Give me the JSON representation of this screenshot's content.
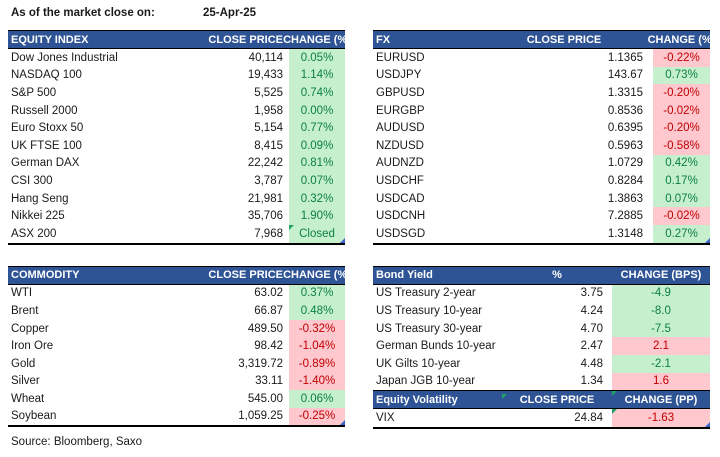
{
  "meta": {
    "as_of_label": "As of the market close on:",
    "date": "25-Apr-25",
    "source": "Source: Bloomberg, Saxo"
  },
  "colors": {
    "header_bg": "#2F5496",
    "header_text": "#FFFFFF",
    "positive_bg": "#C6EFCE",
    "positive_text": "#0B8043",
    "negative_bg": "#FFC7CE",
    "negative_text": "#C00000",
    "note_marker": "#21A366",
    "corner_marker": "#3A63C9"
  },
  "tables": {
    "equity_index": {
      "title": "EQUITY INDEX",
      "price_label": "CLOSE PRICE",
      "change_label": "CHANGE (%)",
      "rows": [
        {
          "name": "Dow Jones Industrial",
          "price": "40,114",
          "change": "0.05%",
          "sentiment": "pos"
        },
        {
          "name": "NASDAQ 100",
          "price": "19,433",
          "change": "1.14%",
          "sentiment": "pos"
        },
        {
          "name": "S&P 500",
          "price": "5,525",
          "change": "0.74%",
          "sentiment": "pos"
        },
        {
          "name": "Russell 2000",
          "price": "1,958",
          "change": "0.00%",
          "sentiment": "pos"
        },
        {
          "name": "Euro Stoxx 50",
          "price": "5,154",
          "change": "0.77%",
          "sentiment": "pos"
        },
        {
          "name": "UK FTSE 100",
          "price": "8,415",
          "change": "0.09%",
          "sentiment": "pos"
        },
        {
          "name": "German DAX",
          "price": "22,242",
          "change": "0.81%",
          "sentiment": "pos"
        },
        {
          "name": "CSI 300",
          "price": "3,787",
          "change": "0.07%",
          "sentiment": "pos"
        },
        {
          "name": "Hang Seng",
          "price": "21,981",
          "change": "0.32%",
          "sentiment": "pos"
        },
        {
          "name": "Nikkei 225",
          "price": "35,706",
          "change": "1.90%",
          "sentiment": "pos"
        },
        {
          "name": "ASX 200",
          "price": "7,968",
          "change": "Closed",
          "sentiment": "pos",
          "note": true
        }
      ]
    },
    "fx": {
      "title": "FX",
      "price_label": "CLOSE PRICE",
      "change_label": "CHANGE (%)",
      "rows": [
        {
          "name": "EURUSD",
          "price": "1.1365",
          "change": "-0.22%",
          "sentiment": "neg"
        },
        {
          "name": "USDJPY",
          "price": "143.67",
          "change": "0.73%",
          "sentiment": "pos"
        },
        {
          "name": "GBPUSD",
          "price": "1.3315",
          "change": "-0.20%",
          "sentiment": "neg"
        },
        {
          "name": "EURGBP",
          "price": "0.8536",
          "change": "-0.02%",
          "sentiment": "neg"
        },
        {
          "name": "AUDUSD",
          "price": "0.6395",
          "change": "-0.20%",
          "sentiment": "neg"
        },
        {
          "name": "NZDUSD",
          "price": "0.5963",
          "change": "-0.58%",
          "sentiment": "neg"
        },
        {
          "name": "AUDNZD",
          "price": "1.0729",
          "change": "0.42%",
          "sentiment": "pos"
        },
        {
          "name": "USDCHF",
          "price": "0.8284",
          "change": "0.17%",
          "sentiment": "pos"
        },
        {
          "name": "USDCAD",
          "price": "1.3863",
          "change": "0.07%",
          "sentiment": "pos"
        },
        {
          "name": "USDCNH",
          "price": "7.2885",
          "change": "-0.02%",
          "sentiment": "neg"
        },
        {
          "name": "USDSGD",
          "price": "1.3148",
          "change": "0.27%",
          "sentiment": "pos"
        }
      ]
    },
    "commodity": {
      "title": "COMMODITY",
      "price_label": "CLOSE PRICE",
      "change_label": "CHANGE (%)",
      "rows": [
        {
          "name": "WTI",
          "price": "63.02",
          "change": "0.37%",
          "sentiment": "pos"
        },
        {
          "name": "Brent",
          "price": "66.87",
          "change": "0.48%",
          "sentiment": "pos"
        },
        {
          "name": "Copper",
          "price": "489.50",
          "change": "-0.32%",
          "sentiment": "neg"
        },
        {
          "name": "Iron Ore",
          "price": "98.42",
          "change": "-1.04%",
          "sentiment": "neg"
        },
        {
          "name": "Gold",
          "price": "3,319.72",
          "change": "-0.89%",
          "sentiment": "neg"
        },
        {
          "name": "Silver",
          "price": "33.11",
          "change": "-1.40%",
          "sentiment": "neg"
        },
        {
          "name": "Wheat",
          "price": "545.00",
          "change": "0.06%",
          "sentiment": "pos"
        },
        {
          "name": "Soybean",
          "price": "1,059.25",
          "change": "-0.25%",
          "sentiment": "neg"
        }
      ]
    },
    "bond_yield": {
      "title": "Bond Yield",
      "price_label": "%",
      "change_label": "CHANGE (BPS)",
      "rows": [
        {
          "name": "US Treasury 2-year",
          "price": "3.75",
          "change": "-4.9",
          "sentiment": "pos"
        },
        {
          "name": "US Treasury 10-year",
          "price": "4.24",
          "change": "-8.0",
          "sentiment": "pos"
        },
        {
          "name": "US Treasury 30-year",
          "price": "4.70",
          "change": "-7.5",
          "sentiment": "pos"
        },
        {
          "name": "German Bunds 10-year",
          "price": "2.47",
          "change": "2.1",
          "sentiment": "neg"
        },
        {
          "name": "UK Gilts 10-year",
          "price": "4.48",
          "change": "-2.1",
          "sentiment": "pos"
        },
        {
          "name": "Japan JGB 10-year",
          "price": "1.34",
          "change": "1.6",
          "sentiment": "neg"
        }
      ]
    },
    "equity_volatility": {
      "title": "Equity Volatility",
      "price_label": "CLOSE PRICE",
      "change_label": "CHANGE (PP)",
      "rows": [
        {
          "name": "VIX",
          "price": "24.84",
          "change": "-1.63",
          "sentiment": "neg",
          "note": true
        }
      ]
    }
  }
}
